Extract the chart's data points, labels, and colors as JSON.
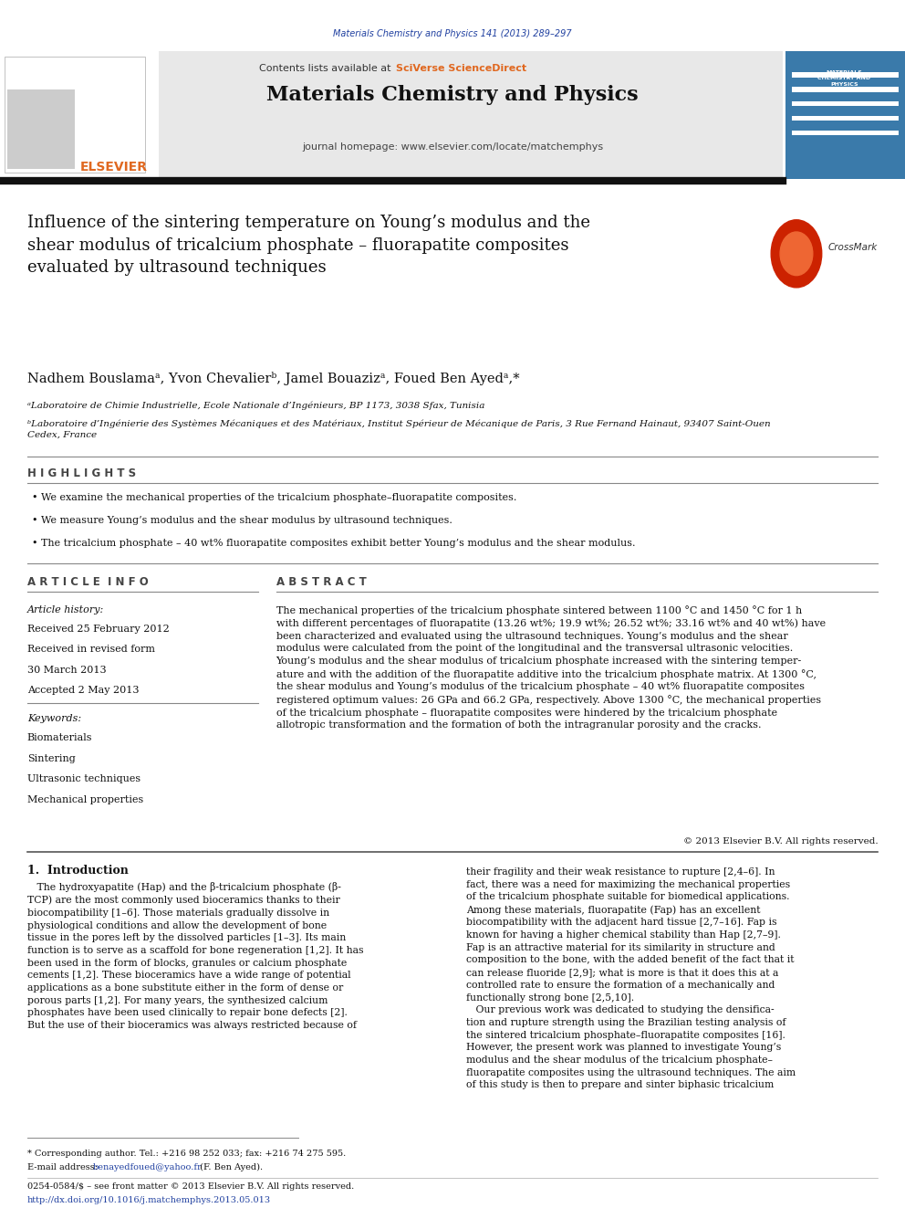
{
  "page_width": 9.92,
  "page_height": 13.23,
  "background_color": "#ffffff",
  "journal_ref": "Materials Chemistry and Physics 141 (2013) 289–297",
  "journal_ref_color": "#2040a0",
  "header_bg": "#e8e8e8",
  "header_text": "Contents lists available at",
  "sciverse_text": "SciVerse ScienceDirect",
  "sciverse_color": "#e06820",
  "journal_title": "Materials Chemistry and Physics",
  "journal_homepage": "journal homepage: www.elsevier.com/locate/matchemphys",
  "thick_bar_color": "#1a1a1a",
  "article_title": "Influence of the sintering temperature on Young’s modulus and the\nshear modulus of tricalcium phosphate – fluorapatite composites\nevaluated by ultrasound techniques",
  "authors": "Nadhem Bouslamaᵃ, Yvon Chevalierᵇ, Jamel Bouazizᵃ, Foued Ben Ayedᵃ,*",
  "affiliation_a": "ᵃLaboratoire de Chimie Industrielle, Ecole Nationale d’Ingénieurs, BP 1173, 3038 Sfax, Tunisia",
  "affiliation_b": "ᵇLaboratoire d’Ingénierie des Systèmes Mécaniques et des Matériaux, Institut Spérieur de Mécanique de Paris, 3 Rue Fernand Hainaut, 93407 Saint-Ouen\nCedex, France",
  "highlights_title": "H I G H L I G H T S",
  "highlights": [
    "We examine the mechanical properties of the tricalcium phosphate–fluorapatite composites.",
    "We measure Young’s modulus and the shear modulus by ultrasound techniques.",
    "The tricalcium phosphate – 40 wt% fluorapatite composites exhibit better Young’s modulus and the shear modulus."
  ],
  "article_info_title": "A R T I C L E  I N F O",
  "article_history_label": "Article history:",
  "received_1": "Received 25 February 2012",
  "received_2": "Received in revised form",
  "received_2b": "30 March 2013",
  "accepted": "Accepted 2 May 2013",
  "keywords_label": "Keywords:",
  "keywords": [
    "Biomaterials",
    "Sintering",
    "Ultrasonic techniques",
    "Mechanical properties"
  ],
  "abstract_title": "A B S T R A C T",
  "abstract_text": "The mechanical properties of the tricalcium phosphate sintered between 1100 °C and 1450 °C for 1 h\nwith different percentages of fluorapatite (13.26 wt%; 19.9 wt%; 26.52 wt%; 33.16 wt% and 40 wt%) have\nbeen characterized and evaluated using the ultrasound techniques. Young’s modulus and the shear\nmodulus were calculated from the point of the longitudinal and the transversal ultrasonic velocities.\nYoung’s modulus and the shear modulus of tricalcium phosphate increased with the sintering temper-\nature and with the addition of the fluorapatite additive into the tricalcium phosphate matrix. At 1300 °C,\nthe shear modulus and Young’s modulus of the tricalcium phosphate – 40 wt% fluorapatite composites\nregistered optimum values: 26 GPa and 66.2 GPa, respectively. Above 1300 °C, the mechanical properties\nof the tricalcium phosphate – fluorapatite composites were hindered by the tricalcium phosphate\nallotropic transformation and the formation of both the intragranular porosity and the cracks.",
  "copyright": "© 2013 Elsevier B.V. All rights reserved.",
  "intro_title": "1.  Introduction",
  "intro_col1": "   The hydroxyapatite (Hap) and the β-tricalcium phosphate (β-\nTCP) are the most commonly used bioceramics thanks to their\nbiocompatibility [1–6]. Those materials gradually dissolve in\nphysiological conditions and allow the development of bone\ntissue in the pores left by the dissolved particles [1–3]. Its main\nfunction is to serve as a scaffold for bone regeneration [1,2]. It has\nbeen used in the form of blocks, granules or calcium phosphate\ncements [1,2]. These bioceramics have a wide range of potential\napplications as a bone substitute either in the form of dense or\nporous parts [1,2]. For many years, the synthesized calcium\nphosphates have been used clinically to repair bone defects [2].\nBut the use of their bioceramics was always restricted because of",
  "intro_col2": "their fragility and their weak resistance to rupture [2,4–6]. In\nfact, there was a need for maximizing the mechanical properties\nof the tricalcium phosphate suitable for biomedical applications.\nAmong these materials, fluorapatite (Fap) has an excellent\nbiocompatibility with the adjacent hard tissue [2,7–16]. Fap is\nknown for having a higher chemical stability than Hap [2,7–9].\nFap is an attractive material for its similarity in structure and\ncomposition to the bone, with the added benefit of the fact that it\ncan release fluoride [2,9]; what is more is that it does this at a\ncontrolled rate to ensure the formation of a mechanically and\nfunctionally strong bone [2,5,10].\n   Our previous work was dedicated to studying the densifica-\ntion and rupture strength using the Brazilian testing analysis of\nthe sintered tricalcium phosphate–fluorapatite composites [16].\nHowever, the present work was planned to investigate Young’s\nmodulus and the shear modulus of the tricalcium phosphate–\nfluorapatite composites using the ultrasound techniques. The aim\nof this study is then to prepare and sinter biphasic tricalcium",
  "footnote_star": "* Corresponding author. Tel.: +216 98 252 033; fax: +216 74 275 595.",
  "footnote_email": "E-mail address: benayedfoued@yahoo.fr (F. Ben Ayed).",
  "footnote_email_link": "benayedfoued@yahoo.fr",
  "footer_left": "0254-0584/$ – see front matter © 2013 Elsevier B.V. All rights reserved.",
  "footer_doi": "http://dx.doi.org/10.1016/j.matchemphys.2013.05.013"
}
